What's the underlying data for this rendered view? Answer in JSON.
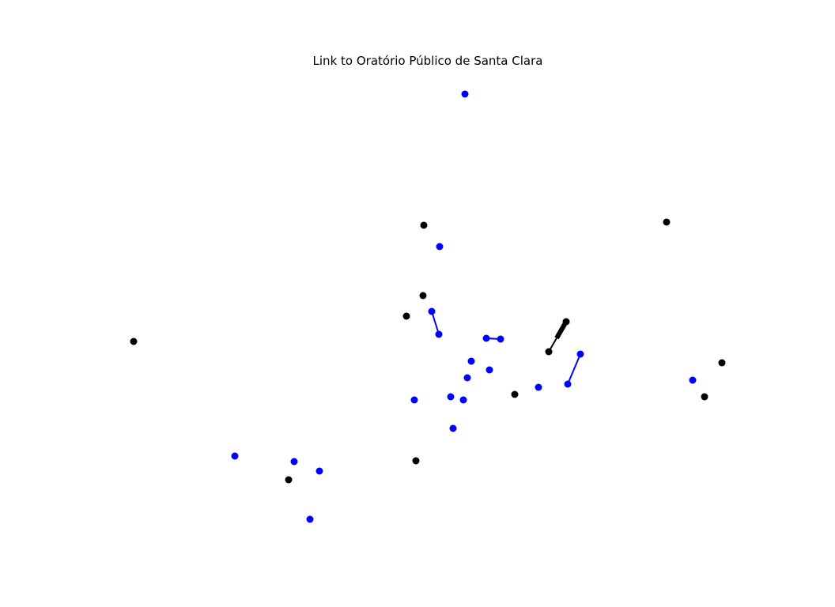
{
  "title": "Link to Oratório Público de Santa Clara",
  "colors": {
    "blue": "#0000ff",
    "black": "#000000",
    "background": "#ffffff"
  },
  "chart_data": {
    "type": "scatter",
    "title": "Link to Oratório Público de Santa Clara",
    "xlabel": "",
    "ylabel": "",
    "grid": false,
    "axes_visible": false,
    "series": [
      {
        "color": "#0000ff",
        "points": [
          [
            588,
            119
          ],
          [
            556,
            312
          ],
          [
            546,
            394
          ],
          [
            555,
            423
          ],
          [
            615,
            428
          ],
          [
            633,
            429
          ],
          [
            596,
            457
          ],
          [
            619,
            468
          ],
          [
            591,
            478
          ],
          [
            734,
            448
          ],
          [
            718,
            486
          ],
          [
            681,
            490
          ],
          [
            524,
            506
          ],
          [
            570,
            502
          ],
          [
            586,
            506
          ],
          [
            573,
            542
          ],
          [
            876,
            481
          ],
          [
            297,
            577
          ],
          [
            372,
            584
          ],
          [
            404,
            596
          ],
          [
            392,
            657
          ]
        ]
      },
      {
        "color": "#000000",
        "points": [
          [
            536,
            285
          ],
          [
            843,
            281
          ],
          [
            535,
            374
          ],
          [
            514,
            400
          ],
          [
            169,
            432
          ],
          [
            716,
            407
          ],
          [
            694,
            445
          ],
          [
            913,
            459
          ],
          [
            891,
            502
          ],
          [
            651,
            499
          ],
          [
            526,
            583
          ],
          [
            365,
            607
          ]
        ]
      }
    ],
    "links": [
      {
        "color": "#0000ff",
        "from": [
          546,
          394
        ],
        "to": [
          555,
          423
        ]
      },
      {
        "color": "#0000ff",
        "from": [
          615,
          428
        ],
        "to": [
          633,
          429
        ]
      },
      {
        "color": "#0000ff",
        "from": [
          734,
          448
        ],
        "to": [
          718,
          486
        ]
      },
      {
        "color": "#000000",
        "from": [
          694,
          445
        ],
        "to": [
          716,
          407
        ],
        "arrow": true
      }
    ]
  }
}
